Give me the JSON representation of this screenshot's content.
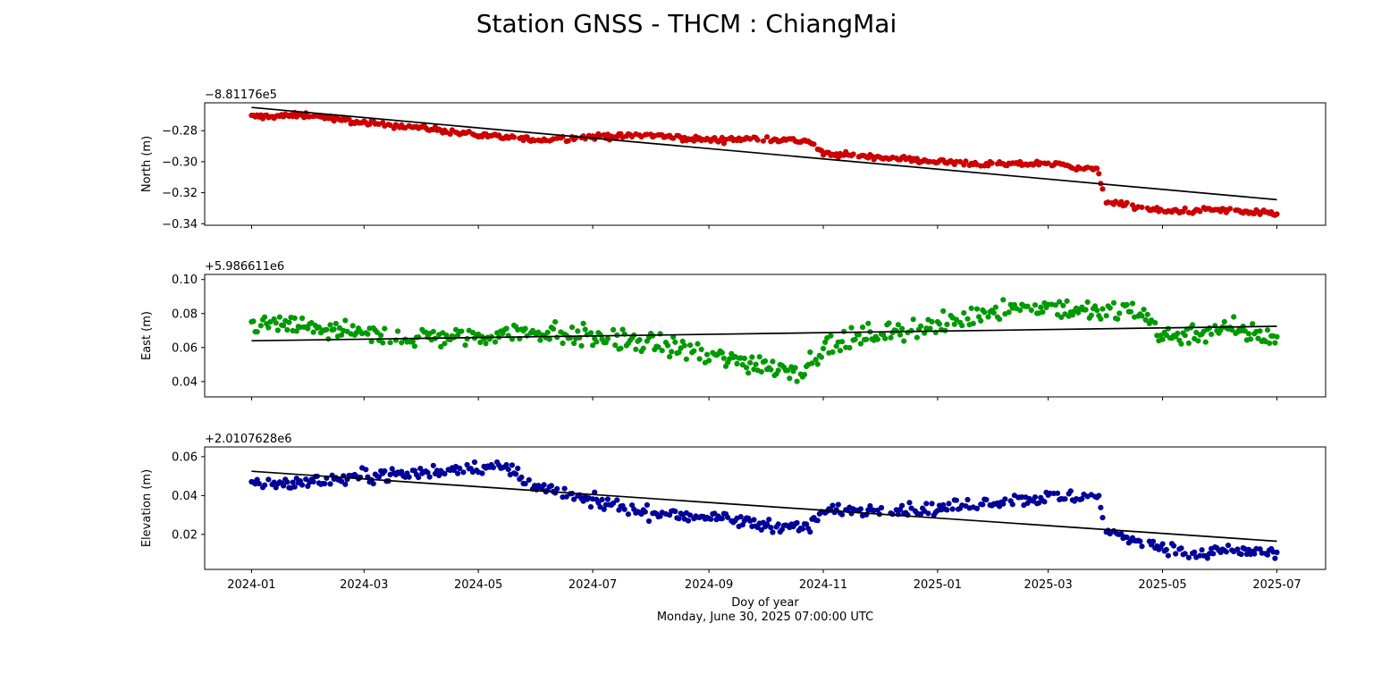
{
  "figure": {
    "title": "Station GNSS - THCM : ChiangMai",
    "xlabel": "Doy of year",
    "timestamp": "Monday, June 30, 2025 07:00:00 UTC"
  },
  "x_tick_labels": [
    "2024-01",
    "2024-03",
    "2024-05",
    "2024-07",
    "2024-09",
    "2024-11",
    "2025-01",
    "2025-03",
    "2025-05",
    "2025-07"
  ],
  "chart_data": [
    {
      "type": "scatter",
      "ylabel": "North (m)",
      "offset_label": "−8.81176e5",
      "ylim": [
        -0.341,
        -0.262
      ],
      "yticks": [
        -0.34,
        -0.32,
        -0.3,
        -0.28
      ],
      "ytick_labels": [
        "−0.34",
        "−0.32",
        "−0.30",
        "−0.28"
      ],
      "color": "#cc0000",
      "trend": {
        "color": "#000000",
        "start": [
          "2024-01-01",
          -0.265
        ],
        "end": [
          "2025-07-01",
          -0.3245
        ]
      },
      "observations": [
        [
          "2024-01-01",
          -0.271
        ],
        [
          "2024-02-01",
          -0.27
        ],
        [
          "2024-03-01",
          -0.275
        ],
        [
          "2024-04-01",
          -0.278
        ],
        [
          "2024-05-01",
          -0.283
        ],
        [
          "2024-06-01",
          -0.286
        ],
        [
          "2024-07-01",
          -0.284
        ],
        [
          "2024-08-01",
          -0.283
        ],
        [
          "2024-09-01",
          -0.286
        ],
        [
          "2024-10-01",
          -0.285
        ],
        [
          "2024-10-25",
          -0.287
        ],
        [
          "2024-11-01",
          -0.295
        ],
        [
          "2024-12-01",
          -0.297
        ],
        [
          "2025-01-01",
          -0.3
        ],
        [
          "2025-02-01",
          -0.302
        ],
        [
          "2025-03-01",
          -0.301
        ],
        [
          "2025-03-27",
          -0.305
        ],
        [
          "2025-04-01",
          -0.326
        ],
        [
          "2025-05-01",
          -0.332
        ],
        [
          "2025-06-01",
          -0.331
        ],
        [
          "2025-07-01",
          -0.334
        ]
      ]
    },
    {
      "type": "scatter",
      "ylabel": "East (m)",
      "offset_label": "+5.986611e6",
      "ylim": [
        0.031,
        0.103
      ],
      "yticks": [
        0.04,
        0.06,
        0.08,
        0.1
      ],
      "ytick_labels": [
        "0.04",
        "0.06",
        "0.08",
        "0.10"
      ],
      "color": "#009900",
      "trend": {
        "color": "#000000",
        "start": [
          "2024-01-01",
          0.064
        ],
        "end": [
          "2025-07-01",
          0.0725
        ]
      },
      "observations": [
        [
          "2024-01-01",
          0.074
        ],
        [
          "2024-02-01",
          0.072
        ],
        [
          "2024-03-01",
          0.067
        ],
        [
          "2024-04-01",
          0.066
        ],
        [
          "2024-05-01",
          0.067
        ],
        [
          "2024-06-01",
          0.07
        ],
        [
          "2024-07-01",
          0.066
        ],
        [
          "2024-08-01",
          0.063
        ],
        [
          "2024-09-01",
          0.055
        ],
        [
          "2024-10-01",
          0.05
        ],
        [
          "2024-10-20",
          0.046
        ],
        [
          "2024-11-01",
          0.06
        ],
        [
          "2024-12-01",
          0.069
        ],
        [
          "2025-01-01",
          0.072
        ],
        [
          "2025-02-01",
          0.083
        ],
        [
          "2025-03-01",
          0.084
        ],
        [
          "2025-04-01",
          0.08
        ],
        [
          "2025-04-20",
          0.083
        ],
        [
          "2025-05-01",
          0.066
        ],
        [
          "2025-06-01",
          0.071
        ],
        [
          "2025-07-01",
          0.066
        ]
      ]
    },
    {
      "type": "scatter",
      "ylabel": "Elevation (m)",
      "offset_label": "+2.0107628e6",
      "ylim": [
        0.002,
        0.065
      ],
      "yticks": [
        0.02,
        0.04,
        0.06
      ],
      "ytick_labels": [
        "0.02",
        "0.04",
        "0.06"
      ],
      "color": "#000099",
      "trend": {
        "color": "#000000",
        "start": [
          "2024-01-01",
          0.0525
        ],
        "end": [
          "2025-07-01",
          0.0165
        ]
      },
      "observations": [
        [
          "2024-01-01",
          0.046
        ],
        [
          "2024-02-01",
          0.047
        ],
        [
          "2024-03-01",
          0.05
        ],
        [
          "2024-04-01",
          0.052
        ],
        [
          "2024-05-01",
          0.055
        ],
        [
          "2024-05-20",
          0.053
        ],
        [
          "2024-06-01",
          0.044
        ],
        [
          "2024-07-01",
          0.037
        ],
        [
          "2024-08-01",
          0.031
        ],
        [
          "2024-09-01",
          0.029
        ],
        [
          "2024-10-01",
          0.025
        ],
        [
          "2024-10-25",
          0.024
        ],
        [
          "2024-11-01",
          0.032
        ],
        [
          "2024-12-01",
          0.033
        ],
        [
          "2025-01-01",
          0.033
        ],
        [
          "2025-02-01",
          0.037
        ],
        [
          "2025-03-01",
          0.039
        ],
        [
          "2025-03-28",
          0.039
        ],
        [
          "2025-04-01",
          0.021
        ],
        [
          "2025-05-01",
          0.014
        ],
        [
          "2025-05-20",
          0.008
        ],
        [
          "2025-06-01",
          0.012
        ],
        [
          "2025-07-01",
          0.01
        ]
      ]
    }
  ]
}
